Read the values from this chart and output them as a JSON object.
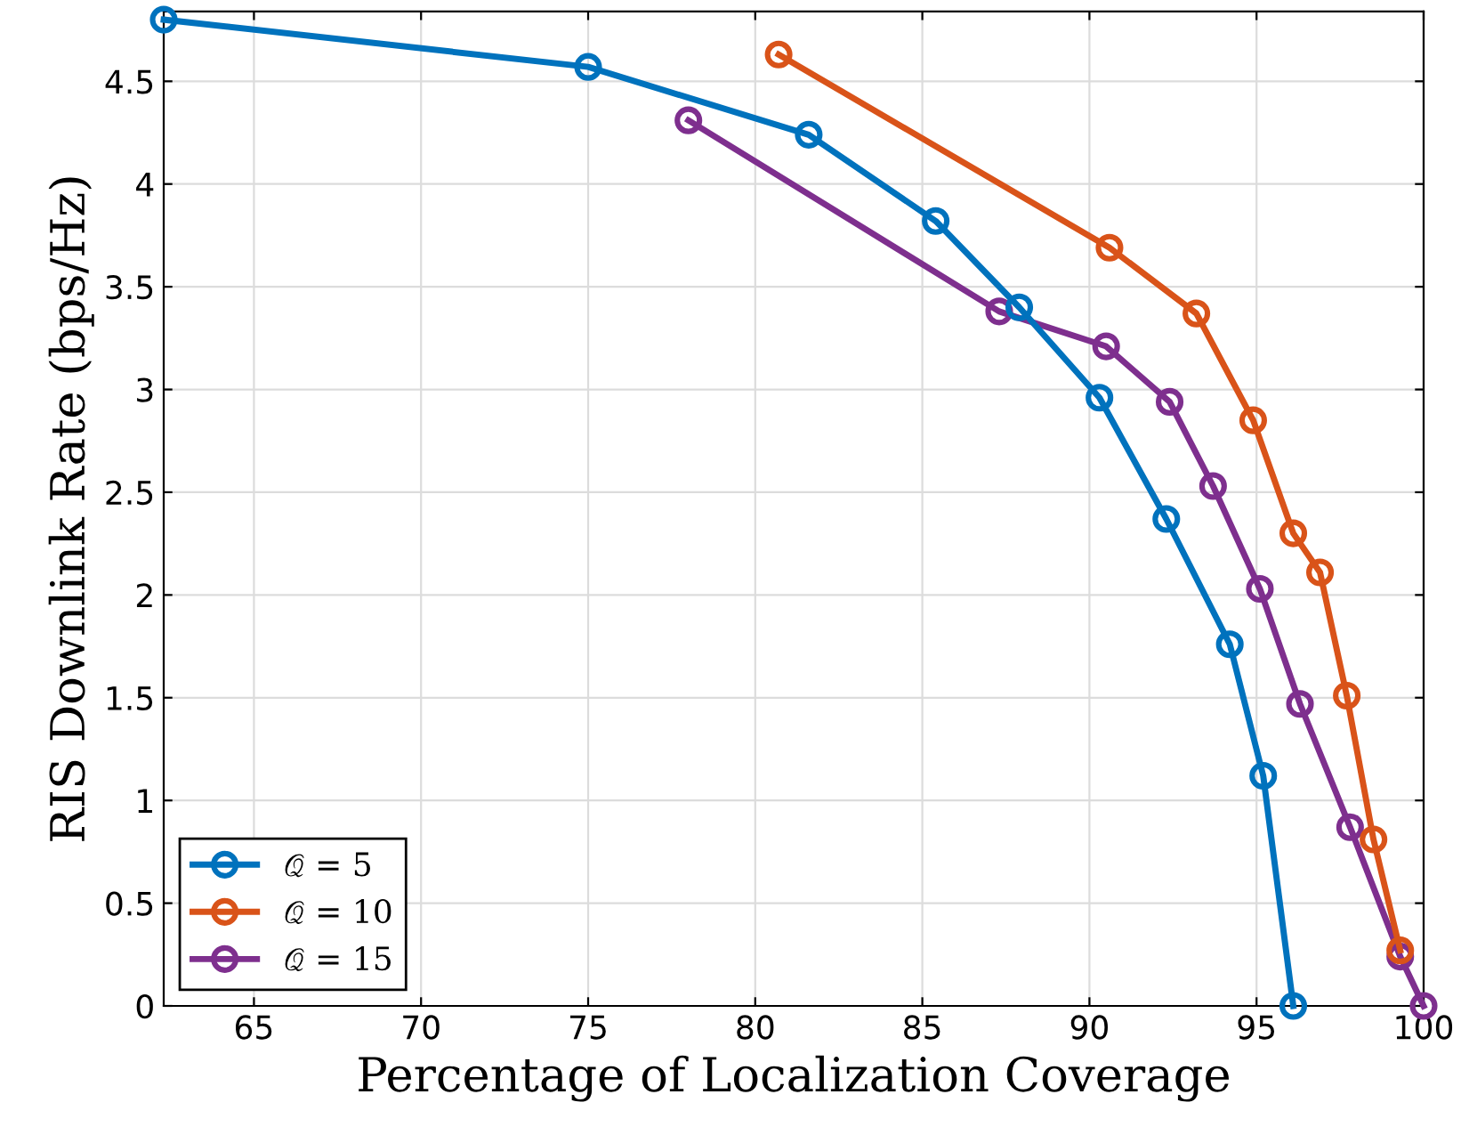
{
  "chart_data": {
    "type": "line",
    "xlabel": "Percentage of Localization Coverage",
    "ylabel": "RIS Downlink Rate (bps/Hz)",
    "xlim": [
      62.3,
      100
    ],
    "ylim": [
      0,
      4.84
    ],
    "xticks": [
      65,
      70,
      75,
      80,
      85,
      90,
      95,
      100
    ],
    "yticks": [
      0,
      0.5,
      1,
      1.5,
      2,
      2.5,
      3,
      3.5,
      4,
      4.5
    ],
    "grid": true,
    "legend": "bottom left",
    "marker": "circle",
    "line_style": "solid",
    "series": [
      {
        "name": "𝒬 = 5",
        "color": "#0072bd",
        "x": [
          62.3,
          75.0,
          81.6,
          85.4,
          87.9,
          90.3,
          92.3,
          94.2,
          95.2,
          96.1
        ],
        "values": [
          4.8,
          4.57,
          4.24,
          3.82,
          3.4,
          2.96,
          2.37,
          1.76,
          1.12,
          0
        ]
      },
      {
        "name": "𝒬 = 10",
        "color": "#d95319",
        "x": [
          80.7,
          90.6,
          93.2,
          94.9,
          96.1,
          96.9,
          97.7,
          98.5,
          99.3
        ],
        "values": [
          4.63,
          3.69,
          3.37,
          2.85,
          2.3,
          2.11,
          1.51,
          0.81,
          0.27
        ]
      },
      {
        "name": "𝒬 = 15",
        "color": "#7e2f8e",
        "x": [
          78.0,
          87.3,
          90.5,
          92.4,
          93.7,
          95.1,
          96.3,
          97.8,
          99.3,
          100
        ],
        "values": [
          4.31,
          3.38,
          3.21,
          2.94,
          2.53,
          2.03,
          1.47,
          0.87,
          0.24,
          0
        ]
      }
    ]
  }
}
